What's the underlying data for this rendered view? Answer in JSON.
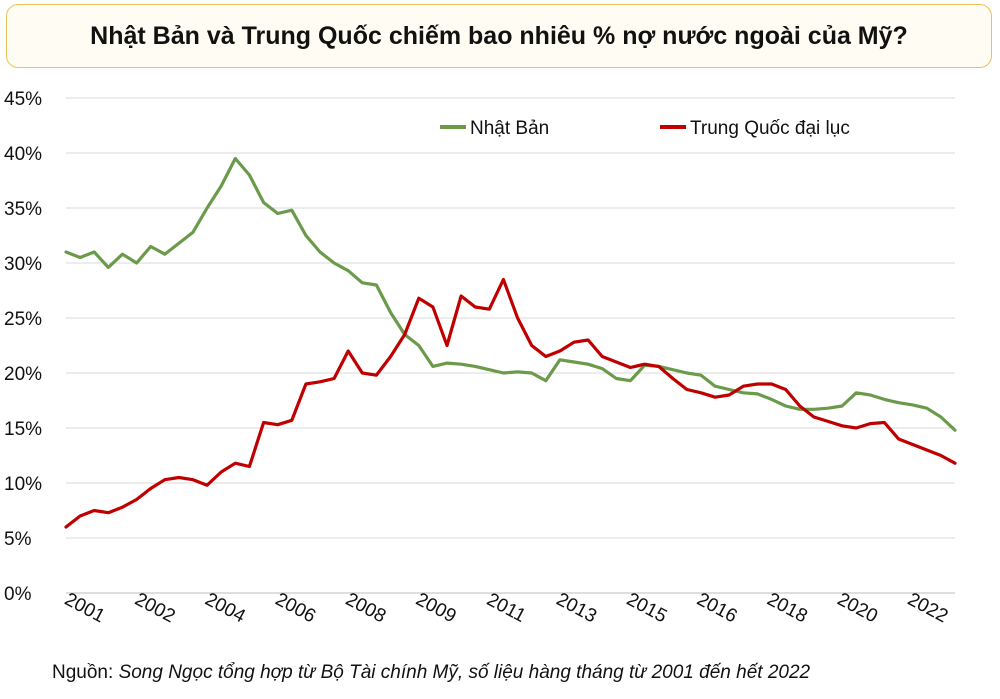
{
  "title": "Nhật Bản và Trung Quốc chiếm bao nhiêu % nợ nước ngoài của Mỹ?",
  "source": {
    "label": "Nguồn:",
    "text": "Song Ngọc tổng hợp từ Bộ Tài chính Mỹ, số liệu hàng tháng từ 2001 đến hết 2022"
  },
  "chart_data": {
    "type": "line",
    "title": "Nhật Bản và Trung Quốc chiếm bao nhiêu % nợ nước ngoài của Mỹ?",
    "ylim": [
      0,
      45
    ],
    "y_ticks": [
      0,
      5,
      10,
      15,
      20,
      25,
      30,
      35,
      40,
      45
    ],
    "y_tick_labels": [
      "0%",
      "5%",
      "10%",
      "15%",
      "20%",
      "25%",
      "30%",
      "35%",
      "40%",
      "45%"
    ],
    "x_tick_labels": [
      "2001",
      "2002",
      "2004",
      "2006",
      "2008",
      "2009",
      "2011",
      "2013",
      "2015",
      "2016",
      "2018",
      "2020",
      "2022"
    ],
    "grid": true,
    "legend_position": "top-right",
    "series": [
      {
        "name": "Nhật Bản",
        "color": "#6a9a4a",
        "values": [
          31.0,
          30.5,
          31.0,
          29.6,
          30.8,
          30.0,
          31.5,
          30.8,
          31.8,
          32.8,
          35.0,
          37.0,
          39.5,
          38.0,
          35.5,
          34.5,
          34.8,
          32.5,
          31.0,
          30.0,
          29.3,
          28.2,
          28.0,
          25.5,
          23.5,
          22.5,
          20.6,
          20.9,
          20.8,
          20.6,
          20.3,
          20.0,
          20.1,
          20.0,
          19.3,
          21.2,
          21.0,
          20.8,
          20.4,
          19.5,
          19.3,
          20.7,
          20.6,
          20.3,
          20.0,
          19.8,
          18.8,
          18.5,
          18.2,
          18.1,
          17.6,
          17.0,
          16.7,
          16.7,
          16.8,
          17.0,
          18.2,
          18.0,
          17.6,
          17.3,
          17.1,
          16.8,
          16.0,
          14.8
        ]
      },
      {
        "name": "Trung Quốc đại lục",
        "color": "#c00000",
        "values": [
          6.0,
          7.0,
          7.5,
          7.3,
          7.8,
          8.5,
          9.5,
          10.3,
          10.5,
          10.3,
          9.8,
          11.0,
          11.8,
          11.5,
          15.5,
          15.3,
          15.7,
          19.0,
          19.2,
          19.5,
          22.0,
          20.0,
          19.8,
          21.5,
          23.5,
          26.8,
          26.0,
          22.5,
          27.0,
          26.0,
          25.8,
          28.5,
          25.0,
          22.5,
          21.5,
          22.0,
          22.8,
          23.0,
          21.5,
          21.0,
          20.5,
          20.8,
          20.6,
          19.5,
          18.5,
          18.2,
          17.8,
          18.0,
          18.8,
          19.0,
          19.0,
          18.5,
          17.0,
          16.0,
          15.6,
          15.2,
          15.0,
          15.4,
          15.5,
          14.0,
          13.5,
          13.0,
          12.5,
          11.8
        ]
      }
    ]
  }
}
